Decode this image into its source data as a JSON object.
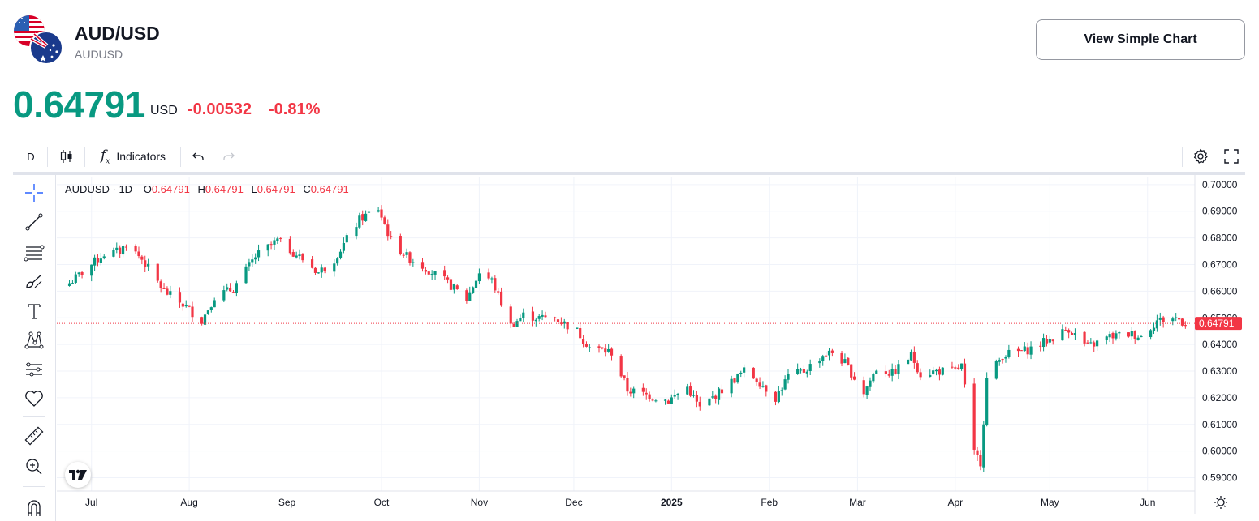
{
  "header": {
    "symbol": "AUD/USD",
    "ticker": "AUDUSD",
    "view_simple_chart": "View Simple Chart",
    "price": "0.64791",
    "currency": "USD",
    "change": "-0.00532",
    "change_pct": "-0.81%"
  },
  "toolbar": {
    "interval": "D",
    "indicators": "Indicators"
  },
  "legend": {
    "symbol": "AUDUSD · 1D",
    "o_label": "O",
    "o": "0.64791",
    "h_label": "H",
    "h": "0.64791",
    "l_label": "L",
    "l": "0.64791",
    "c_label": "C",
    "c": "0.64791"
  },
  "tools": [
    "crosshair-icon",
    "trend-line-icon",
    "fib-retracement-icon",
    "brush-icon",
    "text-icon",
    "pattern-icon",
    "forecast-icon",
    "heart-icon",
    "ruler-icon",
    "zoom-in-icon",
    "magnet-icon"
  ],
  "colors": {
    "up": "#089981",
    "down": "#f23645",
    "grid": "#f0f3fa",
    "axis_text": "#131722"
  },
  "chart_data": {
    "type": "candlestick",
    "symbol": "AUDUSD",
    "interval": "1D",
    "ylim": [
      0.585,
      0.703
    ],
    "yticks": [
      "0.70000",
      "0.69000",
      "0.68000",
      "0.67000",
      "0.66000",
      "0.65000",
      "0.64000",
      "0.63000",
      "0.62000",
      "0.61000",
      "0.60000",
      "0.59000"
    ],
    "xticks": [
      "Jul",
      "Aug",
      "Sep",
      "Oct",
      "Nov",
      "Dec",
      "2025",
      "Feb",
      "Mar",
      "Apr",
      "May",
      "Jun"
    ],
    "last_price": 0.64791,
    "last_price_label": "0.64791",
    "close_path": [
      [
        "2024-06-24",
        0.663
      ],
      [
        "2024-06-28",
        0.667
      ],
      [
        "2024-07-05",
        0.674
      ],
      [
        "2024-07-10",
        0.675
      ],
      [
        "2024-07-12",
        0.678
      ],
      [
        "2024-07-17",
        0.672
      ],
      [
        "2024-07-24",
        0.66
      ],
      [
        "2024-07-30",
        0.655
      ],
      [
        "2024-08-05",
        0.649
      ],
      [
        "2024-08-09",
        0.658
      ],
      [
        "2024-08-15",
        0.661
      ],
      [
        "2024-08-22",
        0.673
      ],
      [
        "2024-08-29",
        0.679
      ],
      [
        "2024-09-06",
        0.672
      ],
      [
        "2024-09-11",
        0.667
      ],
      [
        "2024-09-16",
        0.672
      ],
      [
        "2024-09-24",
        0.687
      ],
      [
        "2024-09-30",
        0.691
      ],
      [
        "2024-10-04",
        0.679
      ],
      [
        "2024-10-09",
        0.673
      ],
      [
        "2024-10-16",
        0.668
      ],
      [
        "2024-10-22",
        0.663
      ],
      [
        "2024-10-28",
        0.657
      ],
      [
        "2024-11-01",
        0.667
      ],
      [
        "2024-11-05",
        0.664
      ],
      [
        "2024-11-11",
        0.647
      ],
      [
        "2024-11-15",
        0.651
      ],
      [
        "2024-11-20",
        0.65
      ],
      [
        "2024-11-25",
        0.65
      ],
      [
        "2024-12-02",
        0.645
      ],
      [
        "2024-12-06",
        0.639
      ],
      [
        "2024-12-13",
        0.637
      ],
      [
        "2024-12-18",
        0.623
      ],
      [
        "2024-12-24",
        0.621
      ],
      [
        "2024-12-31",
        0.619
      ],
      [
        "2025-01-06",
        0.624
      ],
      [
        "2025-01-10",
        0.616
      ],
      [
        "2025-01-15",
        0.621
      ],
      [
        "2025-01-21",
        0.627
      ],
      [
        "2025-01-24",
        0.63
      ],
      [
        "2025-01-28",
        0.627
      ],
      [
        "2025-02-03",
        0.62
      ],
      [
        "2025-02-07",
        0.628
      ],
      [
        "2025-02-12",
        0.63
      ],
      [
        "2025-02-18",
        0.636
      ],
      [
        "2025-02-21",
        0.637
      ],
      [
        "2025-02-25",
        0.633
      ],
      [
        "2025-03-03",
        0.622
      ],
      [
        "2025-03-07",
        0.631
      ],
      [
        "2025-03-12",
        0.629
      ],
      [
        "2025-03-18",
        0.636
      ],
      [
        "2025-03-21",
        0.629
      ],
      [
        "2025-03-26",
        0.63
      ],
      [
        "2025-04-01",
        0.63
      ],
      [
        "2025-04-03",
        0.632
      ],
      [
        "2025-04-07",
        0.599
      ],
      [
        "2025-04-09",
        0.596
      ],
      [
        "2025-04-11",
        0.627
      ],
      [
        "2025-04-16",
        0.636
      ],
      [
        "2025-04-24",
        0.638
      ],
      [
        "2025-05-01",
        0.642
      ],
      [
        "2025-05-07",
        0.646
      ],
      [
        "2025-05-13",
        0.639
      ],
      [
        "2025-05-20",
        0.643
      ],
      [
        "2025-05-27",
        0.644
      ],
      [
        "2025-05-30",
        0.643
      ],
      [
        "2025-06-04",
        0.649
      ],
      [
        "2025-06-10",
        0.65
      ],
      [
        "2025-06-13",
        0.648
      ]
    ]
  }
}
